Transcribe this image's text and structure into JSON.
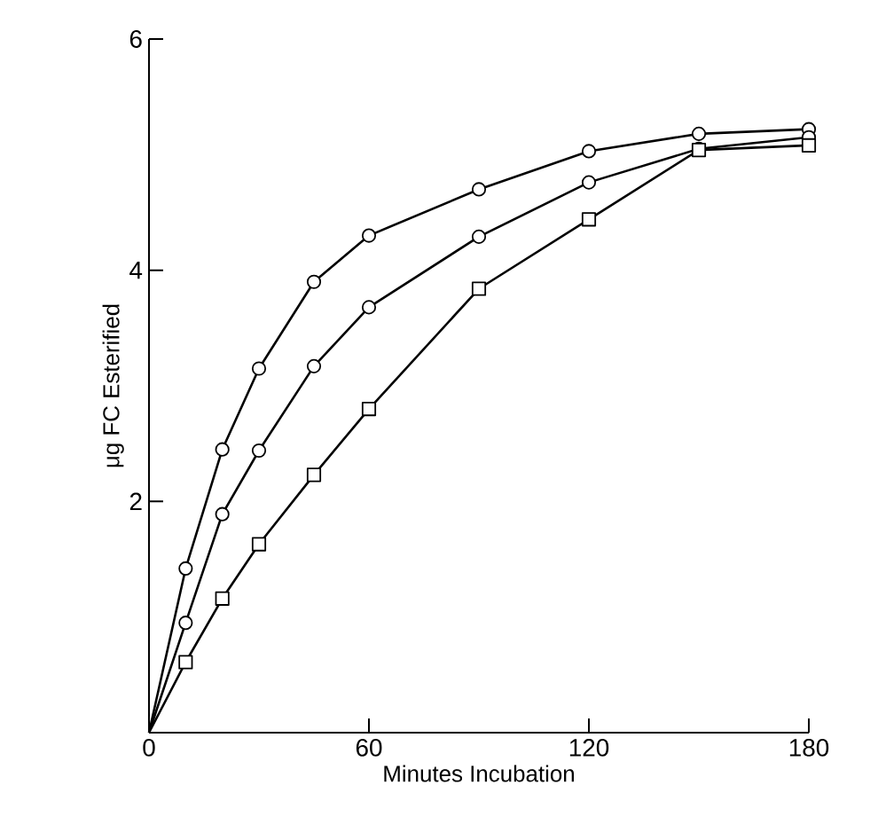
{
  "chart_data": {
    "type": "line",
    "xlabel": "Minutes Incubation",
    "ylabel": "μg FC Esterified",
    "xlim": [
      0,
      180
    ],
    "ylim": [
      0,
      6
    ],
    "xticks": [
      0,
      60,
      120,
      180
    ],
    "yticks": [
      2,
      4,
      6
    ],
    "grid": false,
    "line_style": "solid",
    "series": [
      {
        "color": "#000000",
        "marker": "circle",
        "x": [
          0,
          10,
          20,
          30,
          45,
          60,
          90,
          120,
          150,
          180
        ],
        "values": [
          0,
          1.42,
          2.45,
          3.15,
          3.9,
          4.3,
          4.7,
          5.03,
          5.18,
          5.22
        ]
      },
      {
        "color": "#000000",
        "marker": "circle",
        "x": [
          0,
          10,
          20,
          30,
          45,
          60,
          90,
          120,
          150,
          180
        ],
        "values": [
          0,
          0.95,
          1.89,
          2.44,
          3.17,
          3.68,
          4.29,
          4.76,
          5.05,
          5.15
        ]
      },
      {
        "color": "#000000",
        "marker": "square",
        "x": [
          0,
          10,
          20,
          30,
          45,
          60,
          90,
          120,
          150,
          180
        ],
        "values": [
          0,
          0.61,
          1.16,
          1.63,
          2.23,
          2.8,
          3.84,
          4.44,
          5.04,
          5.08
        ]
      }
    ]
  }
}
